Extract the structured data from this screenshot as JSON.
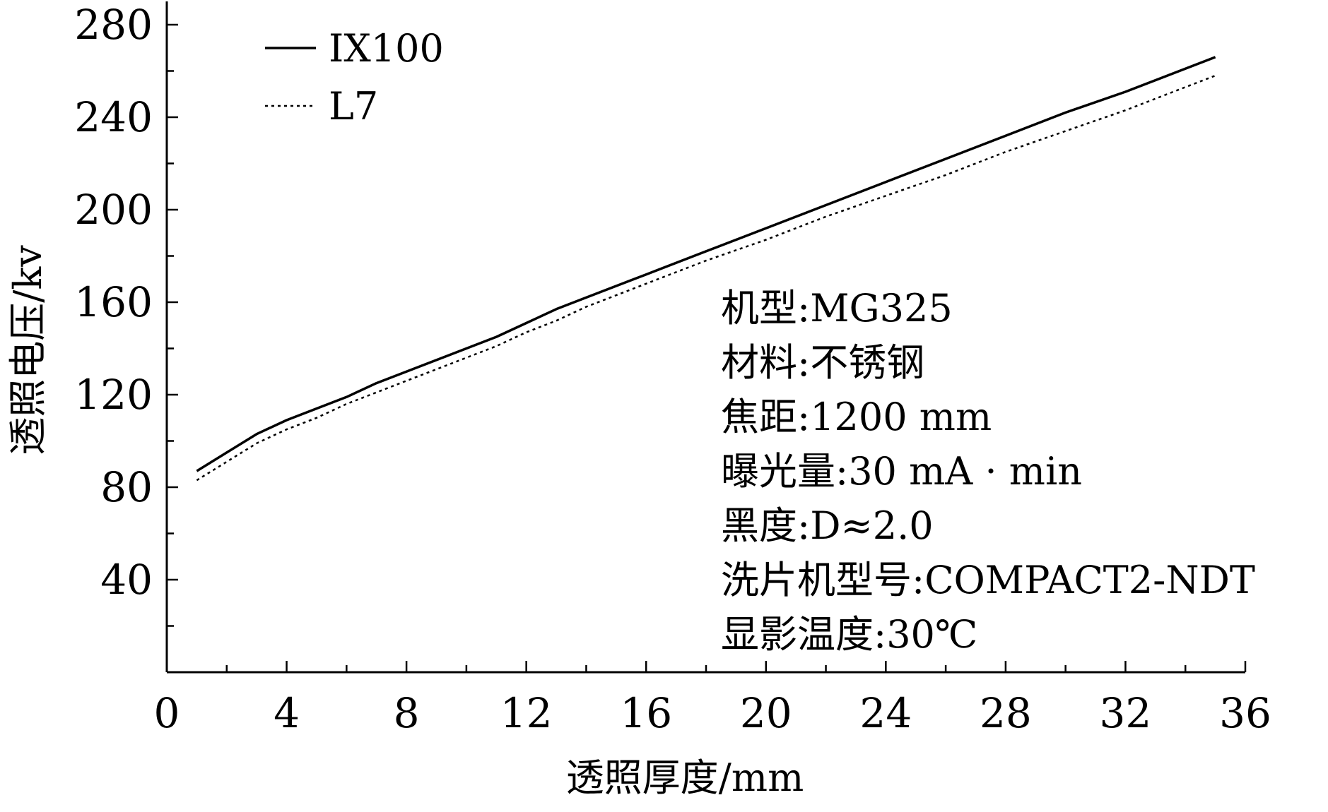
{
  "chart_data": {
    "type": "line",
    "title": "",
    "xlabel": "透照厚度/mm",
    "ylabel": "透照电压/kv",
    "xlim": [
      0,
      36
    ],
    "ylim": [
      0,
      280
    ],
    "x_ticks": [
      "0",
      "4",
      "8",
      "12",
      "16",
      "20",
      "24",
      "28",
      "32",
      "36"
    ],
    "y_ticks": [
      "40",
      "80",
      "120",
      "160",
      "200",
      "240",
      "280"
    ],
    "legend_position": "top-left",
    "grid": false,
    "series": [
      {
        "name": "IX100",
        "style": "solid",
        "color": "#000000",
        "x": [
          1,
          2,
          3,
          4,
          5,
          6,
          7,
          8,
          9,
          10,
          11,
          12,
          13,
          14,
          16,
          18,
          20,
          22,
          24,
          26,
          28,
          30,
          32,
          34,
          35
        ],
        "y": [
          87,
          95,
          103,
          109,
          114,
          119,
          125,
          130,
          135,
          140,
          145,
          151,
          157,
          162,
          172,
          182,
          192,
          202,
          212,
          222,
          232,
          242,
          251,
          261,
          266
        ]
      },
      {
        "name": "L7",
        "style": "dotted",
        "color": "#000000",
        "x": [
          1,
          2,
          3,
          4,
          5,
          6,
          7,
          8,
          9,
          10,
          11,
          12,
          13,
          14,
          16,
          18,
          20,
          22,
          24,
          26,
          28,
          30,
          32,
          34,
          35
        ],
        "y": [
          83,
          91,
          99,
          105,
          110,
          116,
          121,
          126,
          131,
          136,
          141,
          147,
          152,
          158,
          168,
          178,
          187,
          197,
          206,
          215,
          225,
          234,
          243,
          253,
          258
        ]
      }
    ],
    "annotations": [
      "机型:MG325",
      "材料:不锈钢",
      "焦距:1200 mm",
      "曝光量:30 mA · min",
      "黑度:D≈2.0",
      "洗片机型号:COMPACT2-NDT",
      "显影温度:30℃"
    ]
  }
}
